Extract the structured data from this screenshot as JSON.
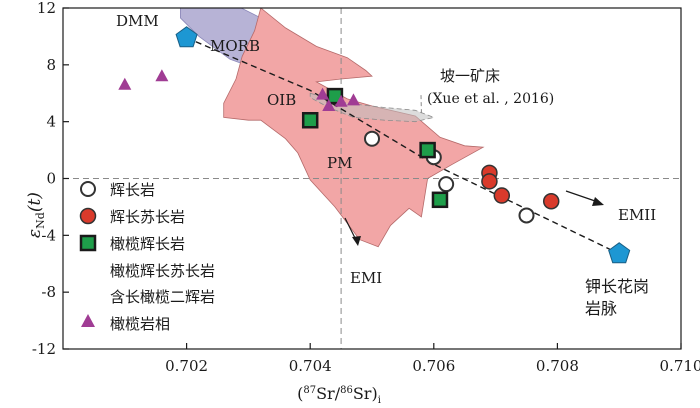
{
  "chart_data": {
    "type": "scatter",
    "xlabel_parts": {
      "open": "(",
      "m1": "87",
      "e1": "Sr/",
      "m2": "86",
      "e2": "Sr)",
      "sub": "i"
    },
    "ylabel_parts": {
      "eps": "ε",
      "sub": "Nd",
      "tail": "(t)"
    },
    "xlim": [
      0.7,
      0.71
    ],
    "ylim": [
      -12,
      12
    ],
    "xticks": [
      0.702,
      0.704,
      0.706,
      0.708,
      0.71
    ],
    "xtick_labels": [
      "0.702",
      "0.704",
      "0.706",
      "0.708",
      "0.710"
    ],
    "yticks": [
      -12,
      -8,
      -4,
      0,
      4,
      8,
      12
    ],
    "ytick_labels": [
      "-12",
      "-8",
      "-4",
      "0",
      "4",
      "8",
      "12"
    ],
    "reference_lines": {
      "x": 0.7045,
      "y": 0
    },
    "regions": [
      {
        "name": "MORB",
        "label": "MORB",
        "color": "#b7b3d6",
        "polygon": [
          [
            0.7019,
            12.4
          ],
          [
            0.7027,
            12.4
          ],
          [
            0.7032,
            11.3
          ],
          [
            0.7036,
            9.8
          ],
          [
            0.7039,
            8.2
          ],
          [
            0.704,
            7.1
          ],
          [
            0.7034,
            7.3
          ],
          [
            0.7027,
            8.4
          ],
          [
            0.7022,
            10.0
          ],
          [
            0.7019,
            11.3
          ]
        ]
      },
      {
        "name": "PM-OIB field",
        "label": "PM",
        "sublabel": "OIB",
        "color": "#f2a6a6",
        "polygon": [
          [
            0.7032,
            12.0
          ],
          [
            0.7036,
            10.6
          ],
          [
            0.7041,
            9.3
          ],
          [
            0.7046,
            8.5
          ],
          [
            0.7049,
            7.6
          ],
          [
            0.705,
            7.2
          ],
          [
            0.7045,
            7.0
          ],
          [
            0.7041,
            6.8
          ],
          [
            0.7046,
            5.6
          ],
          [
            0.705,
            5.1
          ],
          [
            0.7057,
            4.4
          ],
          [
            0.7061,
            2.9
          ],
          [
            0.7065,
            2.3
          ],
          [
            0.7068,
            2.2
          ],
          [
            0.7063,
            1.0
          ],
          [
            0.7059,
            0.0
          ],
          [
            0.7058,
            -2.7
          ],
          [
            0.7056,
            -2.1
          ],
          [
            0.7053,
            -3.3
          ],
          [
            0.7051,
            -4.8
          ],
          [
            0.7048,
            -4.3
          ],
          [
            0.7044,
            -2.0
          ],
          [
            0.704,
            -0.1
          ],
          [
            0.7038,
            1.8
          ],
          [
            0.7036,
            2.8
          ],
          [
            0.7032,
            4.1
          ],
          [
            0.703,
            4.1
          ],
          [
            0.7026,
            4.3
          ],
          [
            0.7026,
            5.3
          ],
          [
            0.7028,
            7.0
          ],
          [
            0.7029,
            8.6
          ],
          [
            0.7031,
            10.4
          ]
        ]
      },
      {
        "name": "Poyi deposit field",
        "color": "#bfbfbf",
        "polygon": [
          [
            0.704,
            6.0
          ],
          [
            0.7046,
            5.3
          ],
          [
            0.7052,
            5.0
          ],
          [
            0.7057,
            4.8
          ],
          [
            0.706,
            4.3
          ],
          [
            0.7057,
            4.0
          ],
          [
            0.7052,
            4.1
          ],
          [
            0.7047,
            4.3
          ],
          [
            0.7043,
            5.0
          ],
          [
            0.704,
            5.7
          ]
        ]
      }
    ],
    "series": [
      {
        "name": "gabbro",
        "label": "辉长岩",
        "marker": "open-circle",
        "color": "#ffffff",
        "points": [
          [
            0.705,
            2.8
          ],
          [
            0.706,
            1.5
          ],
          [
            0.7062,
            -0.4
          ],
          [
            0.7075,
            -2.6
          ]
        ]
      },
      {
        "name": "gabbronorite",
        "label": "辉长苏长岩",
        "marker": "filled-circle",
        "color": "#d93a2b",
        "points": [
          [
            0.7069,
            0.4
          ],
          [
            0.7069,
            -0.2
          ],
          [
            0.7071,
            -1.2
          ],
          [
            0.7079,
            -1.6
          ]
        ]
      },
      {
        "name": "olivine gabbro",
        "label": "橄榄辉长岩",
        "marker": "square",
        "color": "#1e9e4a",
        "points": [
          [
            0.704,
            4.1
          ],
          [
            0.7044,
            5.8
          ],
          [
            0.7059,
            2.0
          ],
          [
            0.7061,
            -1.5
          ]
        ]
      },
      {
        "name": "ol-gabbronorite & amphibole",
        "label1": "橄榄辉长苏长岩",
        "label2": "含长橄榄二辉岩"
      },
      {
        "name": "peridotite facies",
        "label": "橄榄岩相",
        "marker": "triangle",
        "color": "#a03c94",
        "points": [
          [
            0.701,
            6.6
          ],
          [
            0.7016,
            7.2
          ],
          [
            0.7042,
            5.9
          ],
          [
            0.7043,
            5.1
          ],
          [
            0.7045,
            5.4
          ],
          [
            0.7047,
            5.5
          ]
        ]
      }
    ],
    "end_members": [
      {
        "name": "DMM",
        "label": "DMM",
        "x": 0.702,
        "y": 9.9,
        "color": "#1d97d3"
      },
      {
        "name": "钾长花岗岩脉",
        "label1": "钾长花岗",
        "label2": "岩脉",
        "x": 0.709,
        "y": -5.3,
        "color": "#1d97d3"
      }
    ],
    "trend_line": [
      [
        0.702,
        9.9
      ],
      [
        0.704,
        6.2
      ],
      [
        0.706,
        1.0
      ],
      [
        0.709,
        -5.3
      ]
    ],
    "annotations": {
      "poyi": "坡一矿床",
      "citation": "(Xue et al. , 2016)",
      "emi": "EMI",
      "emii": "EMII"
    }
  }
}
